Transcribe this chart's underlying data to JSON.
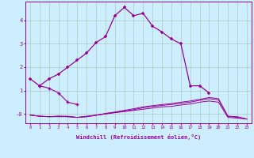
{
  "xlabel": "Windchill (Refroidissement éolien,°C)",
  "background_color": "#cceeff",
  "grid_color": "#aaccbb",
  "line_color": "#990099",
  "x": [
    0,
    1,
    2,
    3,
    4,
    5,
    6,
    7,
    8,
    9,
    10,
    11,
    12,
    13,
    14,
    15,
    16,
    17,
    18,
    19,
    20,
    21,
    22,
    23
  ],
  "s1": [
    1.5,
    1.2,
    1.5,
    1.7,
    2.0,
    2.3,
    2.6,
    3.05,
    3.3,
    4.2,
    4.55,
    4.2,
    4.3,
    3.75,
    3.5,
    3.2,
    3.0,
    1.2,
    1.2,
    0.9,
    null,
    null,
    null,
    null
  ],
  "s2": [
    null,
    1.2,
    1.1,
    0.9,
    0.5,
    0.4,
    null,
    null,
    null,
    null,
    null,
    null,
    null,
    null,
    null,
    null,
    null,
    null,
    null,
    null,
    null,
    null,
    null,
    null
  ],
  "s3": [
    -0.05,
    -0.1,
    -0.12,
    -0.12,
    -0.12,
    -0.15,
    -0.1,
    -0.05,
    0.0,
    0.05,
    0.1,
    0.15,
    0.2,
    0.25,
    0.3,
    0.32,
    0.38,
    0.42,
    0.5,
    0.55,
    0.5,
    -0.15,
    -0.18,
    -0.22
  ],
  "s4": [
    -0.05,
    -0.1,
    -0.12,
    -0.1,
    -0.1,
    -0.15,
    -0.12,
    -0.06,
    0.0,
    0.06,
    0.12,
    0.18,
    0.26,
    0.32,
    0.36,
    0.4,
    0.45,
    0.5,
    0.58,
    0.65,
    0.6,
    -0.1,
    -0.15,
    -0.22
  ],
  "s5": [
    -0.05,
    -0.1,
    -0.12,
    -0.1,
    -0.12,
    -0.15,
    -0.12,
    -0.06,
    0.02,
    0.08,
    0.15,
    0.22,
    0.3,
    0.35,
    0.4,
    0.44,
    0.5,
    0.55,
    0.62,
    0.7,
    0.65,
    -0.1,
    -0.12,
    -0.22
  ],
  "ylim": [
    -0.4,
    4.8
  ],
  "yticks": [
    0,
    1,
    2,
    3,
    4
  ],
  "ytick_labels": [
    "-0",
    "1",
    "2",
    "3",
    "4"
  ],
  "xlim": [
    -0.5,
    23.5
  ],
  "xticks": [
    0,
    1,
    2,
    3,
    4,
    5,
    6,
    7,
    8,
    9,
    10,
    11,
    12,
    13,
    14,
    15,
    16,
    17,
    18,
    19,
    20,
    21,
    22,
    23
  ]
}
